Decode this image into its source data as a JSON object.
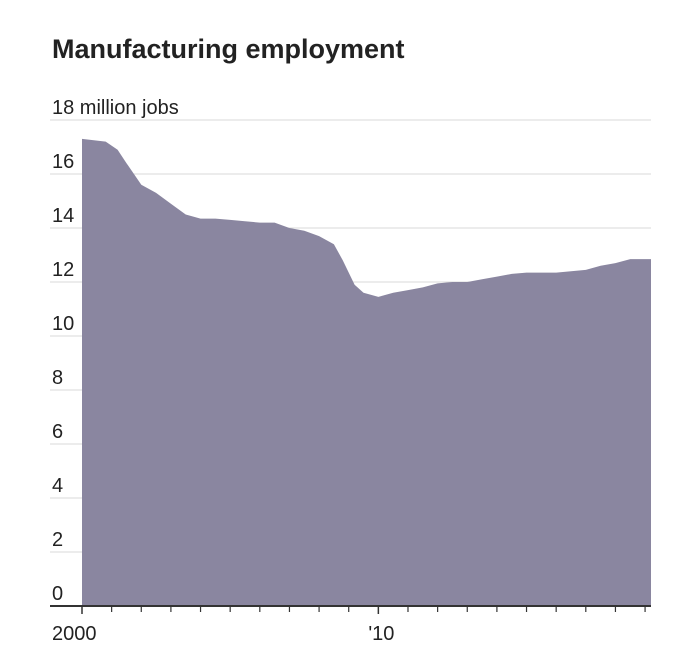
{
  "chart_data": {
    "type": "area",
    "title": "Manufacturing employment",
    "color": "#8a86a0",
    "grid": true,
    "x": [
      2000,
      2000.8,
      2001.2,
      2001.5,
      2002,
      2002.5,
      2003,
      2003.5,
      2004,
      2004.5,
      2005,
      2005.5,
      2006,
      2006.5,
      2007,
      2007.5,
      2008,
      2008.5,
      2008.8,
      2009.2,
      2009.5,
      2010,
      2010.5,
      2011,
      2011.5,
      2012,
      2012.5,
      2013,
      2013.5,
      2014,
      2014.5,
      2015,
      2015.5,
      2016,
      2016.5,
      2017,
      2017.5,
      2018,
      2018.5,
      2019.2
    ],
    "values": [
      17.3,
      17.2,
      16.9,
      16.4,
      15.6,
      15.3,
      14.9,
      14.5,
      14.35,
      14.35,
      14.3,
      14.25,
      14.2,
      14.2,
      14.0,
      13.9,
      13.7,
      13.4,
      12.8,
      11.9,
      11.6,
      11.45,
      11.6,
      11.7,
      11.8,
      11.95,
      12.0,
      12.0,
      12.1,
      12.2,
      12.3,
      12.35,
      12.35,
      12.35,
      12.4,
      12.45,
      12.6,
      12.7,
      12.85,
      12.85
    ],
    "xlim": [
      2000,
      2019.2
    ],
    "xticks": [
      2000,
      {
        "value": 2010,
        "label": "'10"
      }
    ],
    "xminorticks": [
      2001,
      2002,
      2003,
      2004,
      2005,
      2006,
      2007,
      2008,
      2009,
      2011,
      2012,
      2013,
      2014,
      2015,
      2016,
      2017,
      2018,
      2019
    ],
    "ylim": [
      0,
      18
    ],
    "yticks": [
      0,
      2,
      4,
      6,
      8,
      10,
      12,
      14,
      16,
      {
        "value": 18,
        "label": "18 million jobs"
      }
    ]
  }
}
